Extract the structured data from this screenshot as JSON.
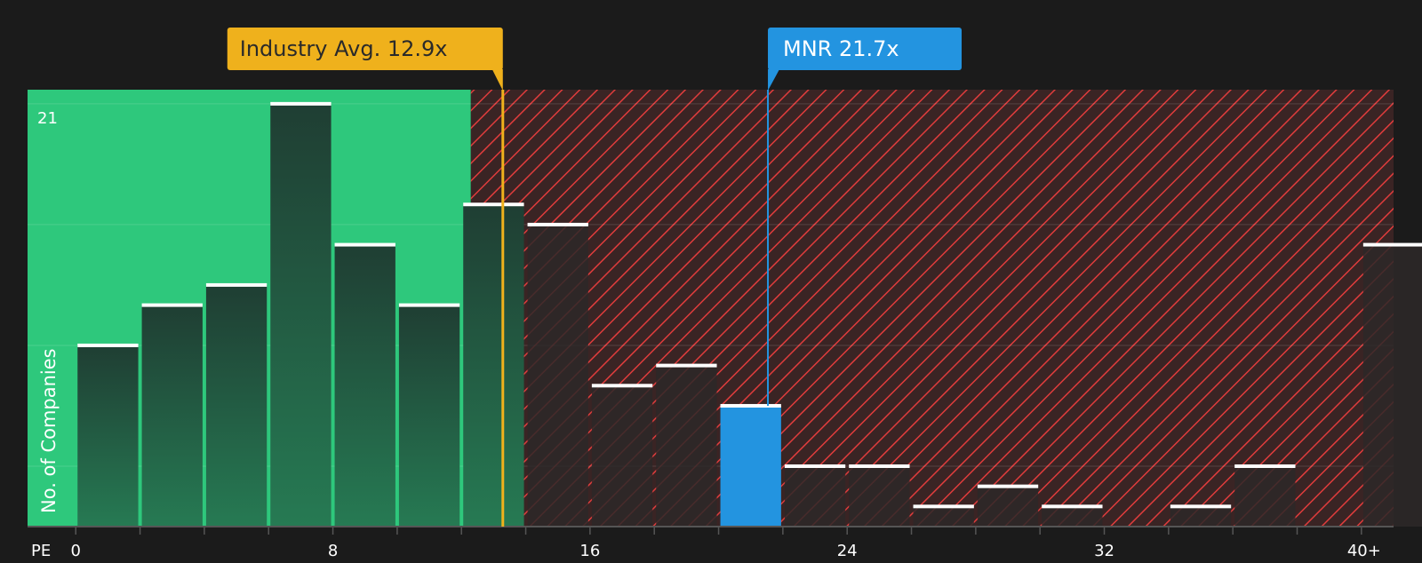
{
  "chart_data": {
    "type": "bar",
    "title": "",
    "xlabel": "PE",
    "ylabel": "No. of Companies",
    "xlim": [
      -1.5,
      41
    ],
    "ylim": [
      0,
      21.7
    ],
    "bin_width": 2,
    "x_ticks": [
      {
        "value": 0,
        "label": "0"
      },
      {
        "value": 8,
        "label": "8"
      },
      {
        "value": 16,
        "label": "16"
      },
      {
        "value": 24,
        "label": "24"
      },
      {
        "value": 32,
        "label": "32"
      },
      {
        "value": 40,
        "label": "40+"
      }
    ],
    "y_ticks": [
      {
        "value": 21,
        "label": "21"
      }
    ],
    "bins": [
      {
        "x": 0,
        "value": 9
      },
      {
        "x": 2,
        "value": 11
      },
      {
        "x": 4,
        "value": 12
      },
      {
        "x": 6,
        "value": 21
      },
      {
        "x": 8,
        "value": 14
      },
      {
        "x": 10,
        "value": 11
      },
      {
        "x": 12,
        "value": 16
      },
      {
        "x": 14,
        "value": 15
      },
      {
        "x": 16,
        "value": 7
      },
      {
        "x": 18,
        "value": 8
      },
      {
        "x": 20,
        "value": 6
      },
      {
        "x": 22,
        "value": 3
      },
      {
        "x": 24,
        "value": 3
      },
      {
        "x": 26,
        "value": 1
      },
      {
        "x": 28,
        "value": 2
      },
      {
        "x": 30,
        "value": 1
      },
      {
        "x": 34,
        "value": 1
      },
      {
        "x": 36,
        "value": 3
      },
      {
        "x": 40,
        "value": 14
      }
    ],
    "highlight_bin_x": 20,
    "industry_avg": {
      "value": 12.9,
      "label": "Industry Avg. 12.9x"
    },
    "company": {
      "value": 21.7,
      "label": "MNR 21.7x"
    },
    "fair_zone_end": 12.9,
    "colors": {
      "background": "#1b1b1b",
      "fair_zone": "#2ec87c",
      "over_zone": "#3a2424",
      "hatch": "#e03c3c",
      "bar": "#1f4a38",
      "bar_over": "#3a2c2c",
      "highlight": "#2394e0",
      "industry_callout": "#efb11c",
      "company_callout": "#2394e0"
    }
  }
}
